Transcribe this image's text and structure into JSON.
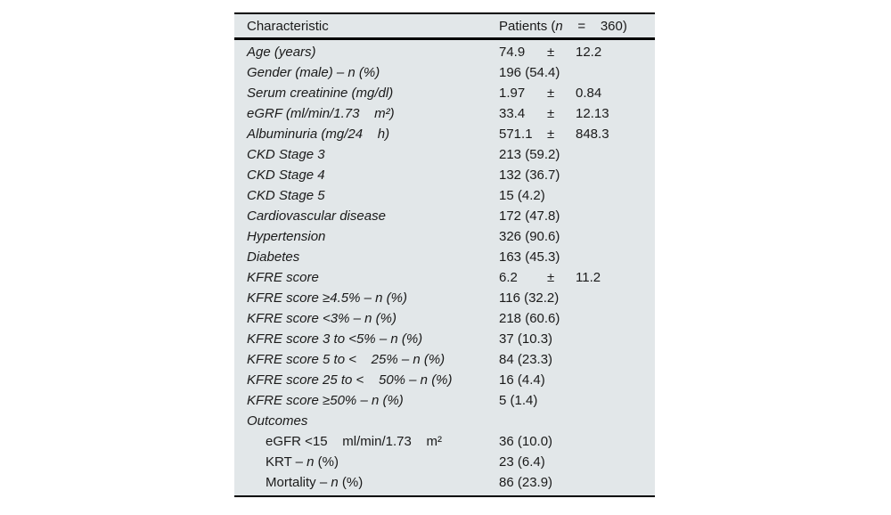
{
  "page": {
    "background": "#ffffff"
  },
  "table": {
    "background": "#e2e7e9",
    "border_color": "#000000",
    "header": {
      "characteristic": "Characteristic",
      "patients_prefix": "Patients (",
      "patients_n": "n",
      "patients_rest": "    =    360)"
    },
    "rows": [
      {
        "label": "Age (years)",
        "v1": "74.9",
        "pm": "±",
        "v2": "12.2"
      },
      {
        "label": "Gender (male) – n (%)",
        "value": "196 (54.4)"
      },
      {
        "label": "Serum creatinine (mg/dl)",
        "v1": "1.97",
        "pm": "±",
        "v2": "0.84"
      },
      {
        "label": "eGRF (ml/min/1.73    m²)",
        "v1": "33.4",
        "pm": "±",
        "v2": "12.13"
      },
      {
        "label": "Albuminuria (mg/24    h)",
        "v1": "571.1",
        "pm": "±",
        "v2": "848.3"
      },
      {
        "label": "CKD Stage 3",
        "value": "213 (59.2)"
      },
      {
        "label": "CKD Stage 4",
        "value": "132 (36.7)"
      },
      {
        "label": "CKD Stage 5",
        "value": "15 (4.2)"
      },
      {
        "label": "Cardiovascular disease",
        "value": "172 (47.8)"
      },
      {
        "label": "Hypertension",
        "value": "326 (90.6)"
      },
      {
        "label": "Diabetes",
        "value": "163 (45.3)"
      },
      {
        "label": "KFRE score",
        "v1": "6.2",
        "pm": "±",
        "v2": "11.2"
      },
      {
        "label": "KFRE score ≥4.5% – n (%)",
        "value": "116 (32.2)"
      },
      {
        "label": "KFRE score <3% – n (%)",
        "value": "218 (60.6)"
      },
      {
        "label": "KFRE score 3 to <5% – n (%)",
        "value": "37 (10.3)"
      },
      {
        "label": "KFRE score 5 to <    25% – n (%)",
        "value": "84 (23.3)"
      },
      {
        "label": "KFRE score 25 to <    50% – n (%)",
        "value": "16 (4.4)"
      },
      {
        "label": "KFRE score ≥50% – n (%)",
        "value": "5 (1.4)"
      },
      {
        "label": "Outcomes"
      },
      {
        "label": "eGFR <15    ml/min/1.73    m²",
        "value": "36 (10.0)"
      },
      {
        "label_pre": "KRT – ",
        "label_n": "n",
        "label_post": " (%)",
        "value": "23 (6.4)"
      },
      {
        "label_pre": "Mortality – ",
        "label_n": "n",
        "label_post": " (%)",
        "value": "86 (23.9)"
      }
    ]
  }
}
